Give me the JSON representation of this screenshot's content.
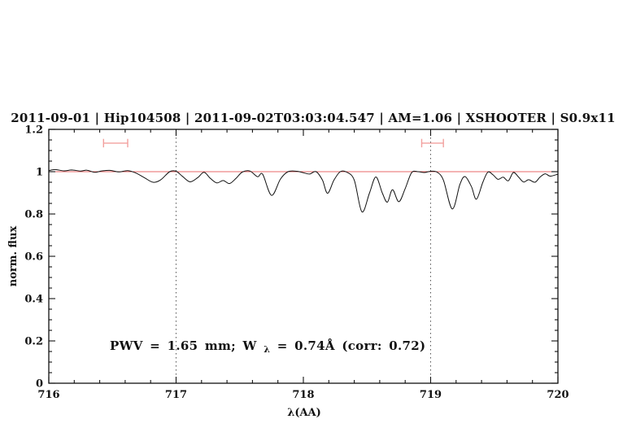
{
  "colors": {
    "annotation_blue": "#0000cd",
    "continuum_red": "#e96a6a",
    "marker_pink": "#f2a09e",
    "spectrum_black": "#111111",
    "guide_gray": "#555555",
    "frame_black": "#111111"
  },
  "annotation": {
    "part1": "PWV = 1.65 mm; W",
    "subscript": "λ",
    "part2": " = 0.74Å (corr: 0.72)"
  },
  "chart_data": {
    "type": "line",
    "title": "2011-09-01 | Hip104508 | 2011-09-02T03:03:04.547 | AM=1.06 | XSHOOTER | S0.9x11",
    "xlabel": "λ(AA)",
    "ylabel": "norm. flux",
    "xlim": [
      716,
      720
    ],
    "ylim": [
      0,
      1.2
    ],
    "grid": "off",
    "legend": "none",
    "xticks": {
      "major": [
        716,
        717,
        718,
        719,
        720
      ],
      "labels": [
        "716",
        "717",
        "718",
        "719",
        "720"
      ],
      "minor_step": 0.2
    },
    "yticks": {
      "major": [
        0,
        0.2,
        0.4,
        0.6,
        0.8,
        1,
        1.2
      ],
      "labels": [
        "0",
        "0.2",
        "0.4",
        "0.6",
        "0.8",
        "1",
        "1.2"
      ],
      "minor_step": 0.05
    },
    "continuum_line_y": 1.0,
    "dotted_vertical_lines": [
      717,
      719
    ],
    "range_markers": [
      {
        "x_start": 716.43,
        "x_end": 716.62,
        "y": 1.135,
        "cap_half_height": 0.02
      },
      {
        "x_start": 718.93,
        "x_end": 719.1,
        "y": 1.135,
        "cap_half_height": 0.02
      }
    ],
    "annotation_text": "PWV = 1.65 mm; W_λ = 0.74Å (corr: 0.72)",
    "series": [
      {
        "name": "normalized flux spectrum",
        "x": [
          716.0,
          716.05,
          716.12,
          716.18,
          716.25,
          716.3,
          716.36,
          716.42,
          716.48,
          716.55,
          716.62,
          716.68,
          716.75,
          716.82,
          716.88,
          716.95,
          717.0,
          717.05,
          717.11,
          717.17,
          717.22,
          717.27,
          717.32,
          717.37,
          717.42,
          717.47,
          717.52,
          717.58,
          717.64,
          717.68,
          717.75,
          717.82,
          717.88,
          717.95,
          718.0,
          718.05,
          718.1,
          718.15,
          718.19,
          718.24,
          718.29,
          718.34,
          718.4,
          718.46,
          718.52,
          718.57,
          718.62,
          718.66,
          718.7,
          718.75,
          718.8,
          718.85,
          718.9,
          718.95,
          719.0,
          719.05,
          719.1,
          719.17,
          719.23,
          719.27,
          719.32,
          719.36,
          719.41,
          719.45,
          719.49,
          719.53,
          719.57,
          719.61,
          719.65,
          719.69,
          719.73,
          719.77,
          719.82,
          719.86,
          719.9,
          719.94,
          720.0
        ],
        "y": [
          1.005,
          1.01,
          1.004,
          1.008,
          1.003,
          1.007,
          0.997,
          1.004,
          1.006,
          0.999,
          1.005,
          0.995,
          0.972,
          0.95,
          0.962,
          1.0,
          1.002,
          0.978,
          0.952,
          0.972,
          0.997,
          0.968,
          0.947,
          0.958,
          0.944,
          0.968,
          0.998,
          1.003,
          0.976,
          0.988,
          0.888,
          0.965,
          1.0,
          1.002,
          0.995,
          0.989,
          1.0,
          0.96,
          0.898,
          0.96,
          1.0,
          0.998,
          0.96,
          0.81,
          0.9,
          0.975,
          0.9,
          0.856,
          0.915,
          0.858,
          0.92,
          0.995,
          1.0,
          0.996,
          1.002,
          0.998,
          0.96,
          0.824,
          0.94,
          0.977,
          0.93,
          0.87,
          0.95,
          0.998,
          0.985,
          0.964,
          0.974,
          0.957,
          0.996,
          0.975,
          0.951,
          0.962,
          0.95,
          0.975,
          0.99,
          0.979,
          0.988
        ]
      }
    ]
  }
}
